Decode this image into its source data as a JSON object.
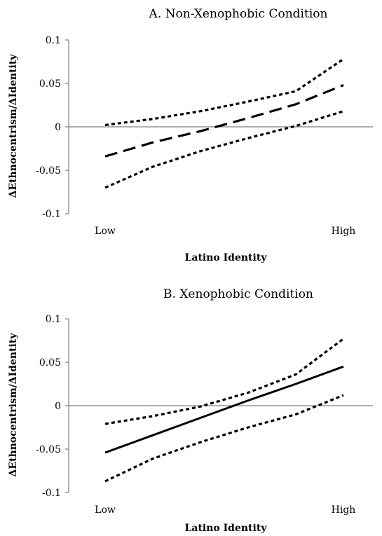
{
  "chart_data": [
    {
      "type": "line",
      "title": "A. Non-Xenophobic Condition",
      "xlabel": "Latino Identity",
      "ylabel": "ΔEthnocentrism/ΔIdentity",
      "categories": [
        "Low",
        "High"
      ],
      "x": [
        0,
        0.2,
        0.4,
        0.6,
        0.8,
        1
      ],
      "ylim": [
        -0.1,
        0.1
      ],
      "yticks": [
        "0.1",
        "0.05",
        "0",
        "-0.05",
        "-0.1"
      ],
      "series": [
        {
          "style": "dotted",
          "values": [
            0.002,
            0.009,
            0.018,
            0.029,
            0.041,
            0.078
          ]
        },
        {
          "style": "dashed",
          "values": [
            -0.034,
            -0.018,
            -0.005,
            0.01,
            0.026,
            0.048
          ]
        },
        {
          "style": "dotted",
          "values": [
            -0.07,
            -0.046,
            -0.028,
            -0.013,
            0.001,
            0.018
          ]
        }
      ],
      "reference_line": 0
    },
    {
      "type": "line",
      "title": "B. Xenophobic Condition",
      "xlabel": "Latino Identity",
      "ylabel": "ΔEthnocentrism/ΔIdentity",
      "categories": [
        "Low",
        "High"
      ],
      "x": [
        0,
        0.2,
        0.4,
        0.6,
        0.8,
        1
      ],
      "ylim": [
        -0.1,
        0.1
      ],
      "yticks": [
        "0.1",
        "0.05",
        "0",
        "-0.05",
        "-0.1"
      ],
      "series": [
        {
          "style": "dotted",
          "values": [
            -0.021,
            -0.012,
            -0.001,
            0.015,
            0.036,
            0.077
          ]
        },
        {
          "style": "solid",
          "values": [
            -0.054,
            -0.034,
            -0.014,
            0.006,
            0.025,
            0.045
          ]
        },
        {
          "style": "dotted",
          "values": [
            -0.087,
            -0.061,
            -0.042,
            -0.025,
            -0.01,
            0.012
          ]
        }
      ],
      "reference_line": 0
    }
  ]
}
